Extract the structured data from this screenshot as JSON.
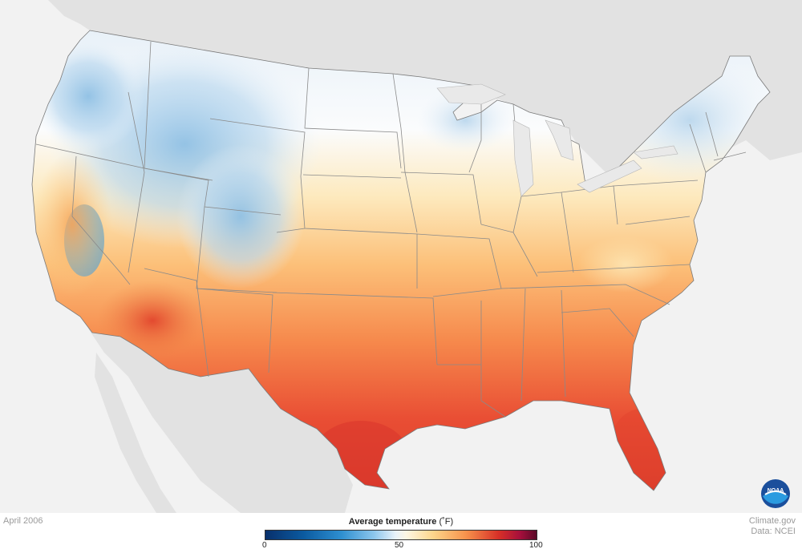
{
  "map": {
    "date": "April 2006",
    "credit_site": "Climate.gov",
    "credit_data": "Data: NCEI",
    "logo_text": "NOAA"
  },
  "legend": {
    "title": "Average temperature",
    "unit": "(˚F)",
    "ticks": [
      "0",
      "50",
      "100"
    ],
    "range": [
      0,
      100
    ],
    "colors": [
      "#08306b",
      "#2e8fd0",
      "#e8f2fa",
      "#fdd58a",
      "#f7924c",
      "#d73027",
      "#5a0a28"
    ]
  },
  "colors": {
    "land_outside": "#e3e3e3",
    "background": "#f2f2f2",
    "state_border": "#8a8a8a"
  }
}
